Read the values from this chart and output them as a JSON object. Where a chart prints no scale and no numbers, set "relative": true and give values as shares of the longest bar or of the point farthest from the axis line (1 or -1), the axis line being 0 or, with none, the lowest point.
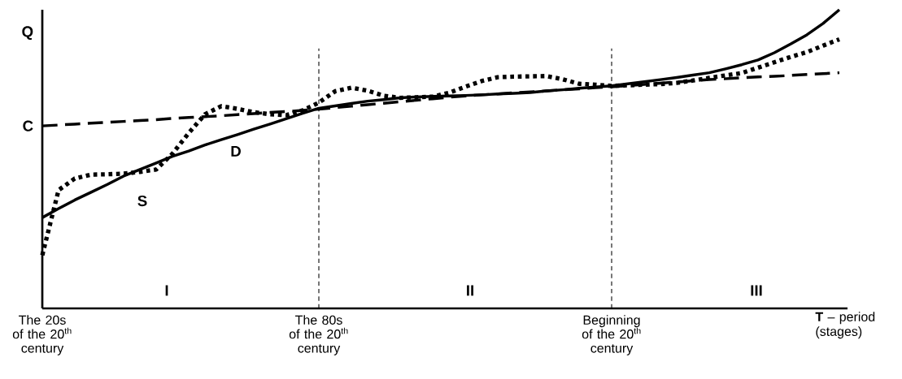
{
  "chart_data": {
    "type": "line",
    "relative": true,
    "xlabel": "**T** – period (stages)",
    "ylabel": "Q",
    "categories": [
      "The 20s of the 20$^{th}$ century",
      null,
      null,
      null,
      null,
      null,
      null,
      null,
      null,
      null,
      null,
      null,
      null,
      null,
      null,
      null,
      null,
      "The 80s of the 20$^{th}$ century",
      null,
      null,
      null,
      null,
      null,
      null,
      null,
      null,
      null,
      null,
      null,
      null,
      null,
      null,
      null,
      null,
      null,
      "Beginning of the 20$^{th}$ century",
      null,
      null,
      null,
      null,
      null,
      null,
      null,
      null,
      null,
      null,
      null,
      null,
      null,
      null
    ],
    "ref_lines": [
      {
        "axis": "x",
        "value": "The 80s of the 20$^{th}$ century",
        "line_style": "dashed"
      },
      {
        "axis": "x",
        "value": "Beginning of the 20$^{th}$ century",
        "line_style": "dashed"
      }
    ],
    "series": [
      {
        "color": "#000000",
        "line_style": "solid",
        "values": [
          0.304,
          0.334,
          0.363,
          0.389,
          0.415,
          0.443,
          0.465,
          0.487,
          0.509,
          0.527,
          0.547,
          0.565,
          0.582,
          0.6,
          0.617,
          0.635,
          0.653,
          0.67,
          0.678,
          0.686,
          0.694,
          0.699,
          0.705,
          0.708,
          0.71,
          0.711,
          0.713,
          0.715,
          0.718,
          0.72,
          0.723,
          0.728,
          0.732,
          0.737,
          0.741,
          0.745,
          0.752,
          0.759,
          0.766,
          0.773,
          0.781,
          0.789,
          0.802,
          0.816,
          0.832,
          0.856,
          0.885,
          0.916,
          0.954,
          1.0
        ]
      },
      {
        "color": "#000000",
        "line_style": "dotted",
        "values": [
          0.178,
          0.396,
          0.435,
          0.448,
          0.449,
          0.451,
          0.457,
          0.465,
          0.518,
          0.587,
          0.65,
          0.677,
          0.668,
          0.657,
          0.65,
          0.647,
          0.663,
          0.689,
          0.727,
          0.739,
          0.729,
          0.712,
          0.705,
          0.707,
          0.709,
          0.722,
          0.742,
          0.761,
          0.774,
          0.776,
          0.777,
          0.778,
          0.767,
          0.752,
          0.749,
          0.745,
          0.747,
          0.749,
          0.751,
          0.755,
          0.763,
          0.772,
          0.78,
          0.788,
          0.806,
          0.824,
          0.842,
          0.858,
          0.88,
          0.901
        ]
      },
      {
        "color": "#000000",
        "line_style": "dashed",
        "values": [
          0.611,
          0.614,
          0.617,
          0.62,
          0.623,
          0.626,
          0.629,
          0.632,
          0.636,
          0.639,
          0.642,
          0.645,
          0.649,
          0.652,
          0.656,
          0.659,
          0.663,
          0.667,
          0.672,
          0.677,
          0.682,
          0.687,
          0.692,
          0.697,
          0.702,
          0.707,
          0.711,
          0.715,
          0.718,
          0.722,
          0.725,
          0.728,
          0.732,
          0.735,
          0.739,
          0.742,
          0.746,
          0.75,
          0.754,
          0.758,
          0.762,
          0.766,
          0.769,
          0.772,
          0.775,
          0.777,
          0.78,
          0.783,
          0.786,
          0.789
        ]
      }
    ],
    "annotations": [
      "C",
      "S",
      "D",
      "I",
      "II",
      "III"
    ]
  }
}
